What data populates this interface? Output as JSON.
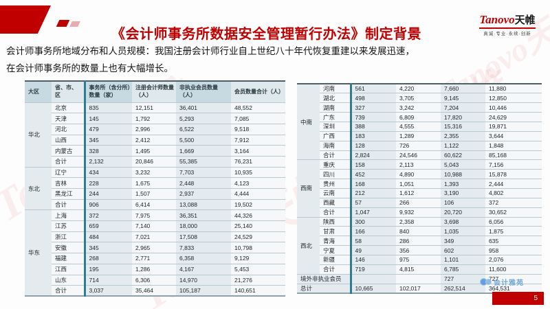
{
  "header": {
    "title": "《会计师事务所数据安全管理暂行办法》制定背景",
    "logo": {
      "latin": "Tanovo",
      "cjk": "天帷",
      "tagline": "真诚·专业·永续·创新"
    }
  },
  "intro": {
    "line1": "会计师事务所地域分布和人员规模：我国注册会计师行业自上世纪八十年代恢复重建以来发展迅速，",
    "line2": "在会计师事务所的数量上也有大幅增长。"
  },
  "left_table": {
    "columns": [
      "大区",
      "省、市、区",
      "事务所（含分所）数量（家）",
      "注册会计师数量（人）",
      "非执业会员数量（人）",
      "会员数量合计（人）"
    ],
    "groups": [
      {
        "region": "华北",
        "rows": [
          [
            "北京",
            "835",
            "12,151",
            "36,401",
            "48,552"
          ],
          [
            "天津",
            "145",
            "1,792",
            "5,293",
            "7,085"
          ],
          [
            "河北",
            "479",
            "2,996",
            "6,522",
            "9,518"
          ],
          [
            "山西",
            "345",
            "2,412",
            "5,500",
            "7,912"
          ],
          [
            "内蒙古",
            "328",
            "1,495",
            "1,669",
            "3,164"
          ],
          [
            "合计",
            "2,132",
            "20,846",
            "55,385",
            "76,231"
          ]
        ]
      },
      {
        "region": "东北",
        "rows": [
          [
            "辽宁",
            "434",
            "3,232",
            "7,703",
            "10,935"
          ],
          [
            "吉林",
            "228",
            "1,675",
            "2,448",
            "4,123"
          ],
          [
            "黑龙江",
            "244",
            "1,507",
            "2,937",
            "4,444"
          ],
          [
            "合计",
            "906",
            "6,414",
            "13,088",
            "19,502"
          ]
        ]
      },
      {
        "region": "华东",
        "rows": [
          [
            "上海",
            "372",
            "7,975",
            "36,351",
            "44,326"
          ],
          [
            "江苏",
            "659",
            "7,140",
            "18,000",
            "25,140"
          ],
          [
            "浙江",
            "484",
            "7,021",
            "17,508",
            "24,529"
          ],
          [
            "安徽",
            "345",
            "2,965",
            "7,833",
            "10,798"
          ],
          [
            "福建",
            "268",
            "2,771",
            "6,358",
            "9,129"
          ],
          [
            "江西",
            "195",
            "1,286",
            "4,167",
            "5,453"
          ],
          [
            "山东",
            "714",
            "6,306",
            "14,970",
            "21,276"
          ],
          [
            "合计",
            "3,037",
            "35,464",
            "105,187",
            "140,651"
          ]
        ]
      }
    ]
  },
  "right_table": {
    "groups": [
      {
        "region": "中南",
        "rows": [
          [
            "河南",
            "561",
            "4,220",
            "7,660",
            "11,880"
          ],
          [
            "湖北",
            "498",
            "3,705",
            "9,145",
            "12,850"
          ],
          [
            "湖南",
            "327",
            "3,242",
            "7,204",
            "10,446"
          ],
          [
            "广东",
            "739",
            "6,809",
            "17,820",
            "24,629"
          ],
          [
            "深圳",
            "388",
            "4,555",
            "15,316",
            "19,871"
          ],
          [
            "广西",
            "183",
            "1,289",
            "2,355",
            "3,644"
          ],
          [
            "海南",
            "128",
            "726",
            "1,122",
            "1,848"
          ],
          [
            "合计",
            "2,824",
            "24,546",
            "60,622",
            "85,168"
          ]
        ]
      },
      {
        "region": "西南",
        "rows": [
          [
            "重庆",
            "158",
            "2,113",
            "5,043",
            "7,156"
          ],
          [
            "四川",
            "452",
            "4,890",
            "10,988",
            "15,878"
          ],
          [
            "贵州",
            "168",
            "1,051",
            "1,393",
            "2,444"
          ],
          [
            "云南",
            "212",
            "1,612",
            "3,190",
            "4,802"
          ],
          [
            "西藏",
            "57",
            "266",
            "106",
            "372"
          ],
          [
            "合计",
            "1,047",
            "9,932",
            "20,720",
            "30,652"
          ]
        ]
      },
      {
        "region": "西北",
        "rows": [
          [
            "陕西",
            "300",
            "2,358",
            "3,698",
            "6,056"
          ],
          [
            "甘肃",
            "166",
            "840",
            "1,035",
            "1,875"
          ],
          [
            "青海",
            "58",
            "286",
            "349",
            "635"
          ],
          [
            "宁夏",
            "49",
            "356",
            "602",
            "958"
          ],
          [
            "新疆",
            "146",
            "975",
            "1,101",
            "2,076"
          ],
          [
            "合计",
            "719",
            "4,815",
            "6,785",
            "11,600"
          ]
        ]
      }
    ],
    "footer_rows": [
      {
        "label": "境外非执业会员",
        "values": [
          "",
          "",
          "727",
          "727"
        ]
      },
      {
        "label": "总计",
        "values": [
          "10,665",
          "102,017",
          "262,514",
          "364,531"
        ]
      }
    ]
  },
  "watermark": {
    "text": "Tanovo天帷",
    "badge_text": "会计雅苑"
  },
  "page_number": "5",
  "colors": {
    "accent_red": "#c00000",
    "teal_bar": "#2d7d91",
    "header_tint": "#c7dae2",
    "column_tint": "#e4ebee",
    "badge_blue": "#5b9bd5"
  }
}
